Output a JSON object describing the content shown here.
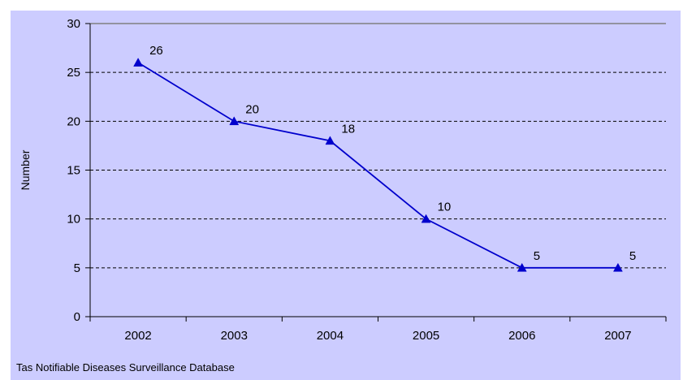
{
  "chart_data": {
    "type": "line",
    "categories": [
      "2002",
      "2003",
      "2004",
      "2005",
      "2006",
      "2007"
    ],
    "series": [
      {
        "values": [
          26,
          20,
          18,
          10,
          5,
          5
        ],
        "color": "#0000cc",
        "marker": "triangle"
      }
    ],
    "data_labels": [
      "26",
      "20",
      "18",
      "10",
      "5",
      "5"
    ],
    "title": "",
    "xlabel": "",
    "ylabel": "Number",
    "ylim": [
      0,
      30
    ],
    "yticks": [
      0,
      5,
      10,
      15,
      20,
      25,
      30
    ],
    "ytick_labels": [
      "0",
      "5",
      "10",
      "15",
      "20",
      "25",
      "30"
    ],
    "grid": "horizontal-dashed",
    "legend": "none",
    "plot_background": "#ccccff",
    "source_note": "Tas Notifiable Diseases Surveillance Database"
  }
}
